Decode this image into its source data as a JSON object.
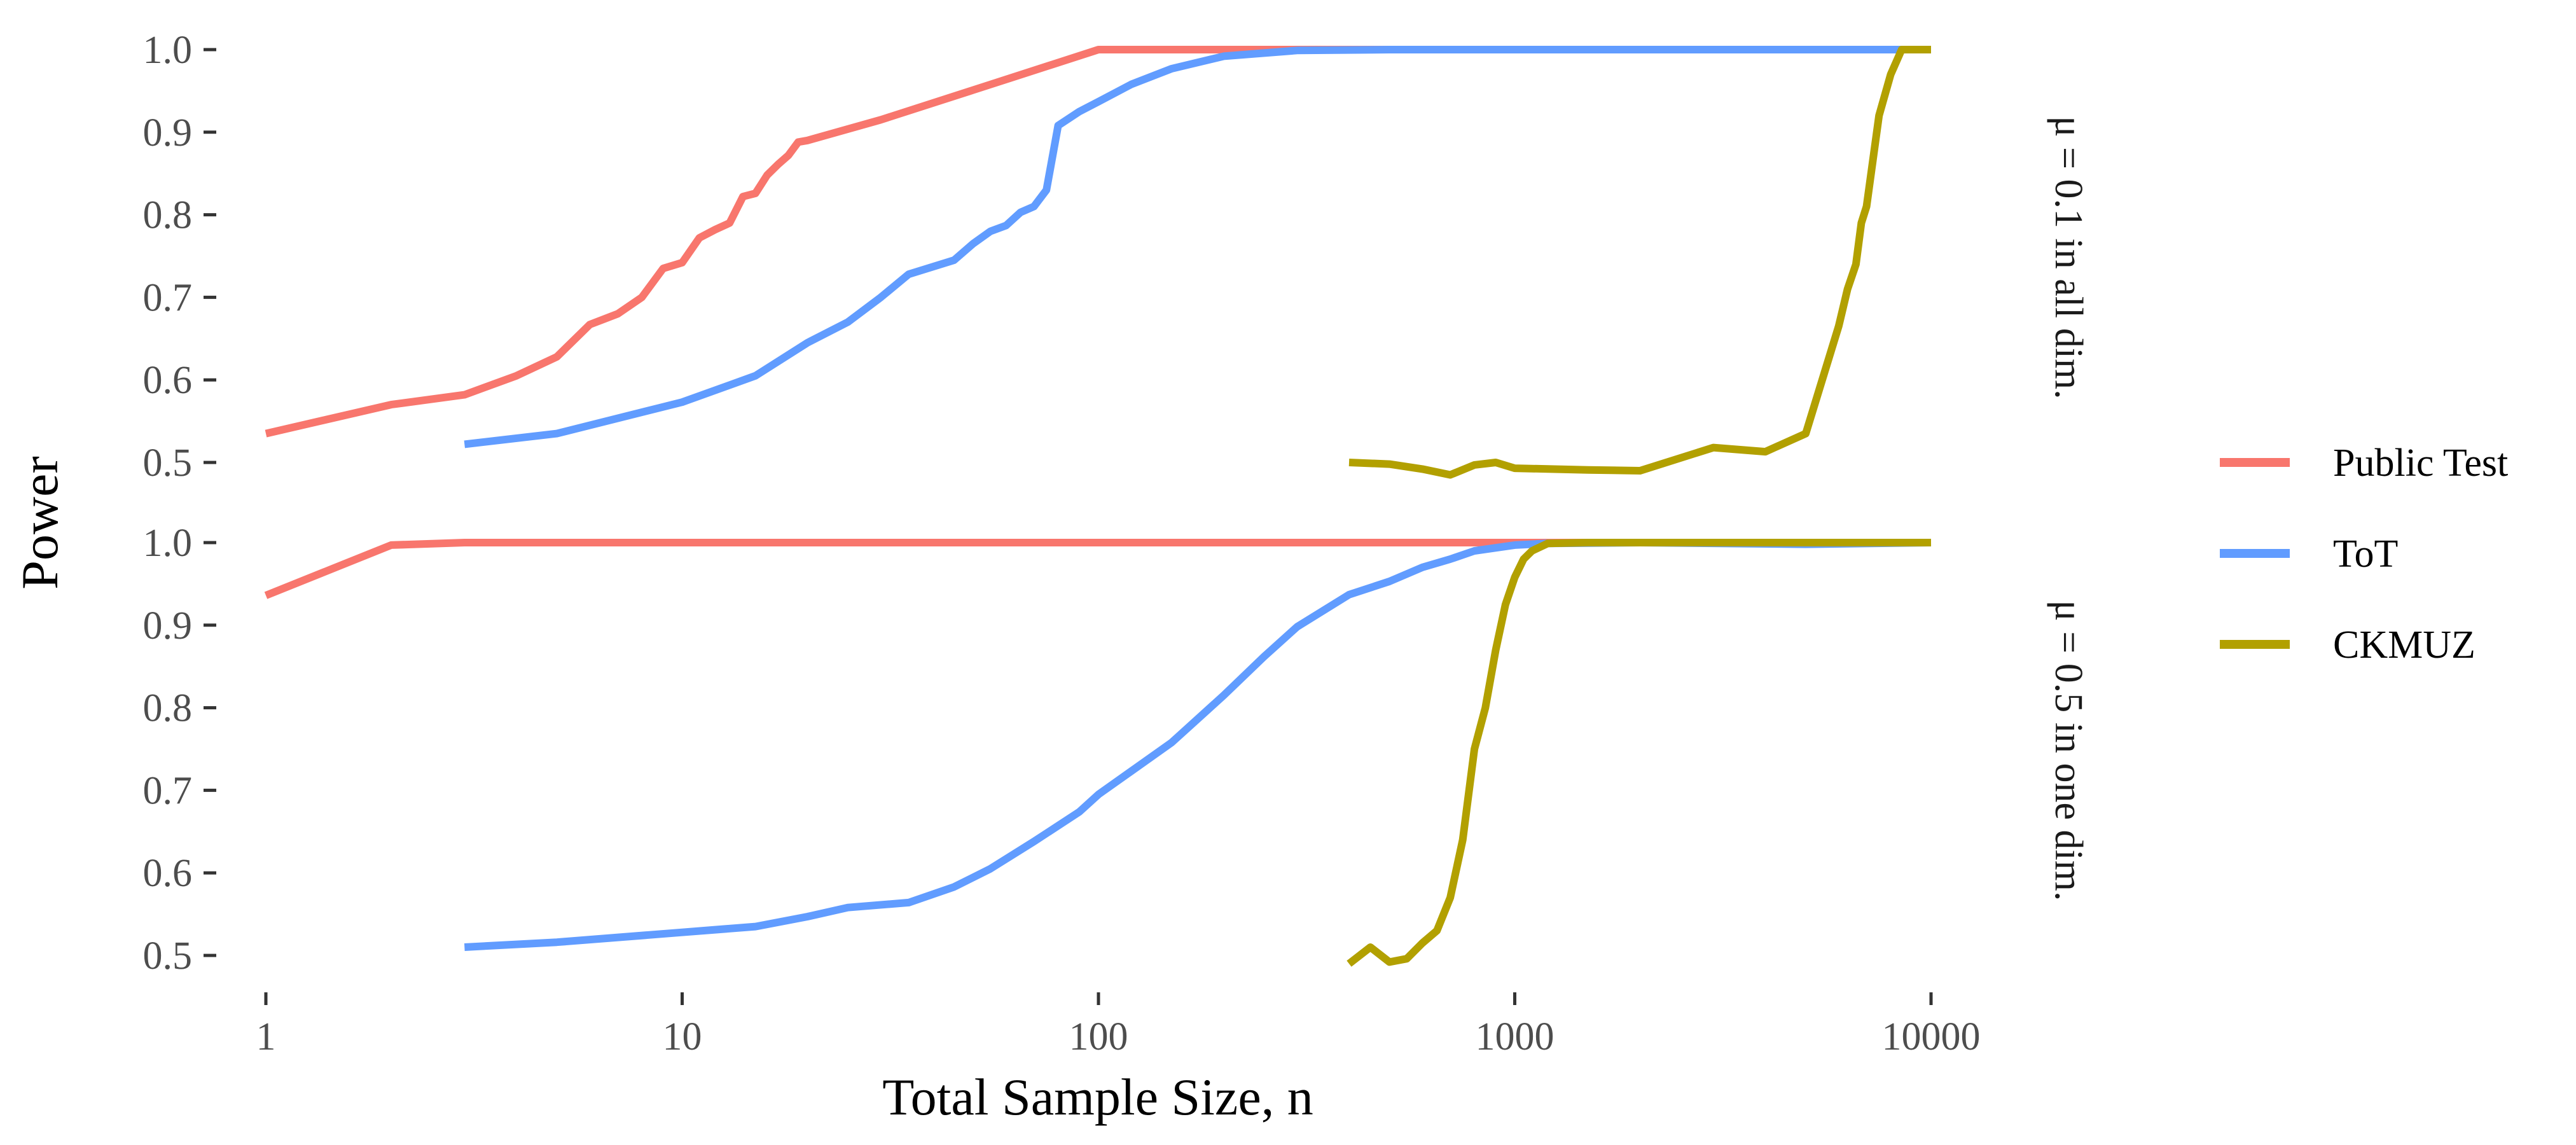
{
  "chart_data": {
    "type": "line",
    "xlabel": "Total Sample Size, n",
    "ylabel": "Power",
    "x_scale": "log10",
    "xlim": [
      1,
      10000
    ],
    "x_ticks": [
      1,
      10,
      100,
      1000,
      10000
    ],
    "x_tick_labels": [
      "1",
      "10",
      "100",
      "1000",
      "10000"
    ],
    "ylim": [
      0.5,
      1.0
    ],
    "y_ticks": [
      0.5,
      0.6,
      0.7,
      0.8,
      0.9,
      1.0
    ],
    "y_tick_labels": [
      "0.5",
      "0.6",
      "0.7",
      "0.8",
      "0.9",
      "1.0"
    ],
    "grid": false,
    "legend_position": "right",
    "legend": [
      {
        "name": "Public Test",
        "color": "#F8766D"
      },
      {
        "name": "ToT",
        "color": "#619CFF"
      },
      {
        "name": "CKMUZ",
        "color": "#B2A000"
      }
    ],
    "panels": [
      {
        "strip_label": "μ = 0.1 in all dim.",
        "series": [
          {
            "name": "Public Test",
            "color": "#F8766D",
            "x": [
              1,
              2,
              3,
              4,
              5,
              6,
              7,
              8,
              9,
              10,
              11,
              12,
              13,
              14,
              15,
              16,
              17,
              18,
              19,
              20,
              30,
              50,
              100,
              200,
              500,
              1000,
              10000
            ],
            "y": [
              0.535,
              0.57,
              0.582,
              0.605,
              0.628,
              0.667,
              0.68,
              0.7,
              0.735,
              0.742,
              0.772,
              0.782,
              0.79,
              0.822,
              0.826,
              0.848,
              0.861,
              0.872,
              0.888,
              0.89,
              0.915,
              0.951,
              1.0,
              1.0,
              1.0,
              1.0,
              1.0
            ]
          },
          {
            "name": "ToT",
            "color": "#619CFF",
            "x": [
              3,
              5,
              10,
              15,
              20,
              25,
              30,
              35,
              45,
              50,
              55,
              60,
              65,
              70,
              75,
              80,
              90,
              100,
              120,
              150,
              200,
              300,
              500,
              1000,
              10000
            ],
            "y": [
              0.522,
              0.535,
              0.573,
              0.605,
              0.645,
              0.67,
              0.7,
              0.728,
              0.745,
              0.765,
              0.78,
              0.787,
              0.803,
              0.81,
              0.83,
              0.908,
              0.925,
              0.937,
              0.958,
              0.977,
              0.992,
              0.999,
              1.0,
              1.0,
              1.0
            ]
          },
          {
            "name": "CKMUZ",
            "color": "#B2A000",
            "x": [
              400,
              500,
              600,
              700,
              800,
              900,
              1000,
              1500,
              2000,
              3000,
              4000,
              5000,
              6000,
              6300,
              6600,
              6800,
              7000,
              7500,
              8000,
              8500,
              10000
            ],
            "y": [
              0.5,
              0.498,
              0.492,
              0.485,
              0.497,
              0.5,
              0.493,
              0.491,
              0.49,
              0.518,
              0.513,
              0.535,
              0.665,
              0.71,
              0.74,
              0.79,
              0.81,
              0.92,
              0.97,
              1.0,
              1.0
            ]
          }
        ]
      },
      {
        "strip_label": "μ = 0.5 in one dim.",
        "series": [
          {
            "name": "Public Test",
            "color": "#F8766D",
            "x": [
              1,
              2,
              3,
              10,
              100,
              1000,
              10000
            ],
            "y": [
              0.936,
              0.997,
              1.0,
              1.0,
              1.0,
              1.0,
              1.0
            ]
          },
          {
            "name": "ToT",
            "color": "#619CFF",
            "x": [
              3,
              5,
              10,
              15,
              20,
              25,
              35,
              45,
              55,
              70,
              90,
              100,
              150,
              200,
              250,
              300,
              400,
              500,
              600,
              700,
              800,
              1000,
              1200,
              2000,
              5000,
              10000
            ],
            "y": [
              0.51,
              0.516,
              0.528,
              0.535,
              0.547,
              0.558,
              0.564,
              0.583,
              0.605,
              0.638,
              0.674,
              0.695,
              0.758,
              0.815,
              0.862,
              0.898,
              0.937,
              0.953,
              0.97,
              0.98,
              0.99,
              0.997,
              0.999,
              1.0,
              0.998,
              1.0
            ]
          },
          {
            "name": "CKMUZ",
            "color": "#B2A000",
            "x": [
              400,
              450,
              500,
              550,
              600,
              650,
              700,
              750,
              800,
              850,
              900,
              950,
              1000,
              1050,
              1100,
              1200,
              1500,
              2000,
              5000,
              10000
            ],
            "y": [
              0.49,
              0.51,
              0.492,
              0.496,
              0.515,
              0.53,
              0.57,
              0.64,
              0.75,
              0.8,
              0.87,
              0.925,
              0.958,
              0.98,
              0.99,
              0.999,
              1.0,
              1.0,
              1.0,
              1.0
            ]
          }
        ]
      }
    ]
  }
}
